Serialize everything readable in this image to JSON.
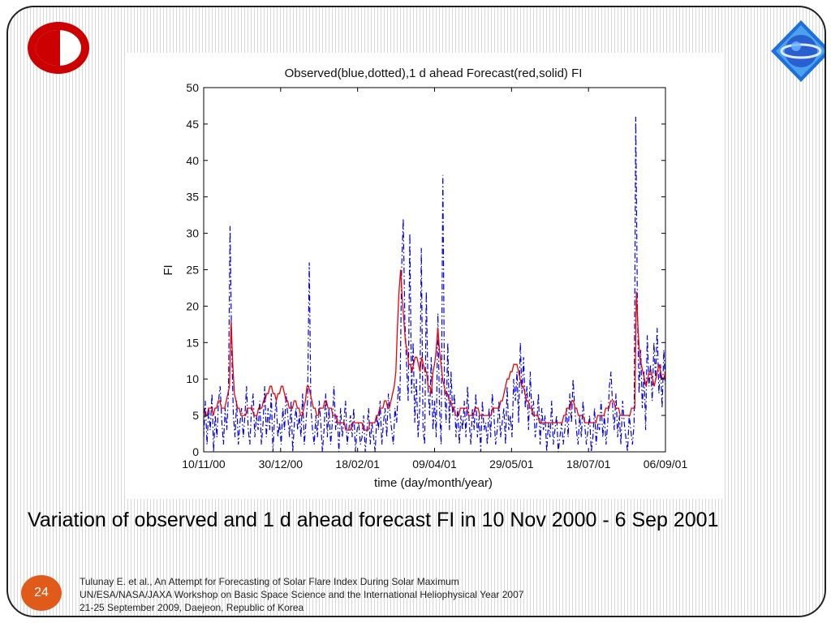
{
  "slide": {
    "caption": "Variation of observed and 1 d ahead forecast FI in 10 Nov 2000 - 6 Sep 2001",
    "page_number": "24",
    "citation": [
      "Tulunay E. et al., An Attempt for Forecasting of Solar Flare Index During Solar Maximum",
      "UN/ESA/NASA/JAXA Workshop on Basic Space Science and the International Heliophysical Year 2007",
      "21-25 September 2009, Daejeon, Republic of Korea"
    ],
    "colors": {
      "accent_orange": "#e05a1a",
      "logo_red": "#cc0000",
      "logo_blue": "#2a5fd0"
    },
    "icons": {
      "left_logo": "odtu-logo",
      "right_logo": "blue-globe-logo"
    }
  },
  "chart_data": {
    "type": "line",
    "title": "Observed(blue,dotted),1 d ahead Forecast(red,solid) FI",
    "xlabel": "time (day/month/year)",
    "ylabel": "FI",
    "x_tick_labels": [
      "10/11/00",
      "30/12/00",
      "18/02/01",
      "09/04/01",
      "29/05/01",
      "18/07/01",
      "06/09/01"
    ],
    "x_range_days": [
      0,
      300
    ],
    "x_tick_days": [
      0,
      50,
      100,
      150,
      200,
      250,
      300
    ],
    "ylim": [
      0,
      50
    ],
    "y_ticks": [
      0,
      5,
      10,
      15,
      20,
      25,
      30,
      35,
      40,
      45,
      50
    ],
    "grid": false,
    "series": [
      {
        "name": "Observed",
        "style": "dash-dot",
        "color": "#0000ee",
        "values": [
          2,
          7,
          1,
          6,
          3,
          8,
          0,
          5,
          2,
          7,
          9,
          4,
          1,
          6,
          3,
          8,
          31,
          14,
          5,
          2,
          7,
          1,
          4,
          6,
          2,
          5,
          9,
          3,
          1,
          6,
          8,
          2,
          5,
          3,
          7,
          1,
          4,
          9,
          2,
          6,
          3,
          8,
          0,
          5,
          7,
          2,
          4,
          1,
          6,
          3,
          8,
          5,
          2,
          7,
          0,
          4,
          6,
          3,
          5,
          2,
          8,
          1,
          4,
          7,
          26,
          6,
          3,
          1,
          5,
          2,
          7,
          4,
          0,
          3,
          8,
          2,
          6,
          1,
          4,
          9,
          3,
          5,
          0,
          6,
          2,
          4,
          7,
          1,
          3,
          5,
          2,
          6,
          0,
          3,
          4,
          1,
          2,
          5,
          0,
          3,
          6,
          1,
          4,
          2,
          0,
          5,
          3,
          7,
          1,
          4,
          6,
          2,
          8,
          5,
          3,
          1,
          6,
          4,
          9,
          7,
          25,
          32,
          18,
          12,
          7,
          30,
          8,
          15,
          4,
          10,
          2,
          6,
          28,
          3,
          1,
          22,
          9,
          5,
          13,
          3,
          7,
          2,
          19,
          6,
          1,
          38,
          9,
          4,
          15,
          3,
          11,
          5,
          8,
          2,
          6,
          1,
          5,
          3,
          7,
          2,
          9,
          4,
          1,
          6,
          3,
          8,
          2,
          5,
          0,
          7,
          3,
          4,
          1,
          6,
          2,
          8,
          5,
          1,
          3,
          7,
          2,
          4,
          6,
          1,
          9,
          3,
          5,
          2,
          10,
          7,
          11,
          4,
          15,
          8,
          13,
          6,
          9,
          3,
          11,
          5,
          7,
          2,
          4,
          8,
          1,
          6,
          3,
          5,
          0,
          4,
          2,
          7,
          1,
          3,
          5,
          0,
          2,
          4,
          1,
          3,
          6,
          2,
          8,
          4,
          10,
          6,
          3,
          1,
          5,
          2,
          7,
          4,
          1,
          3,
          5,
          0,
          2,
          6,
          1,
          4,
          3,
          7,
          2,
          5,
          1,
          4,
          9,
          11,
          6,
          3,
          8,
          2,
          5,
          1,
          7,
          4,
          2,
          0,
          5,
          3,
          1,
          4,
          46,
          19,
          8,
          14,
          6,
          11,
          3,
          16,
          9,
          12,
          7,
          15,
          10,
          17,
          8,
          12,
          6,
          14,
          9
        ]
      },
      {
        "name": "1 d ahead Forecast",
        "style": "solid",
        "color": "#ee0000",
        "values": [
          6,
          5,
          5,
          6,
          6,
          6,
          5,
          6,
          6,
          7,
          7,
          6,
          6,
          6,
          7,
          8,
          9,
          18,
          12,
          8,
          7,
          6,
          6,
          5,
          5,
          5,
          5,
          6,
          6,
          6,
          6,
          5,
          5,
          5,
          6,
          6,
          6,
          7,
          7,
          8,
          8,
          9,
          9,
          8,
          8,
          7,
          8,
          8,
          9,
          9,
          8,
          7,
          7,
          6,
          6,
          6,
          7,
          7,
          6,
          6,
          5,
          5,
          6,
          7,
          9,
          9,
          8,
          7,
          6,
          6,
          5,
          5,
          6,
          6,
          6,
          7,
          7,
          6,
          6,
          6,
          5,
          5,
          5,
          4,
          4,
          4,
          4,
          4,
          3,
          3,
          3,
          3,
          4,
          4,
          4,
          4,
          4,
          4,
          4,
          3,
          3,
          3,
          3,
          4,
          4,
          4,
          4,
          5,
          5,
          6,
          6,
          6,
          7,
          7,
          6,
          6,
          7,
          8,
          9,
          11,
          17,
          22,
          25,
          21,
          18,
          15,
          14,
          12,
          12,
          11,
          12,
          13,
          13,
          12,
          11,
          13,
          12,
          11,
          11,
          9,
          9,
          8,
          11,
          12,
          14,
          17,
          14,
          12,
          10,
          9,
          8,
          8,
          7,
          7,
          6,
          6,
          5,
          5,
          5,
          6,
          6,
          6,
          6,
          6,
          5,
          5,
          5,
          5,
          6,
          6,
          6,
          5,
          5,
          5,
          5,
          5,
          5,
          5,
          5,
          6,
          6,
          6,
          6,
          6,
          7,
          7,
          8,
          9,
          10,
          10,
          11,
          11,
          12,
          12,
          12,
          11,
          10,
          9,
          9,
          8,
          7,
          7,
          6,
          6,
          5,
          5,
          5,
          5,
          4,
          4,
          4,
          4,
          4,
          4,
          4,
          4,
          4,
          4,
          4,
          4,
          4,
          4,
          4,
          5,
          5,
          6,
          6,
          6,
          7,
          7,
          6,
          6,
          5,
          5,
          5,
          5,
          4,
          4,
          4,
          4,
          4,
          4,
          4,
          4,
          5,
          5,
          5,
          5,
          5,
          6,
          6,
          6,
          7,
          7,
          7,
          6,
          6,
          6,
          5,
          5,
          5,
          5,
          5,
          5,
          5,
          6,
          6,
          6,
          22,
          17,
          13,
          12,
          11,
          10,
          9,
          10,
          11,
          11,
          10,
          9,
          10,
          11,
          12,
          11,
          10,
          10,
          11
        ]
      }
    ]
  }
}
